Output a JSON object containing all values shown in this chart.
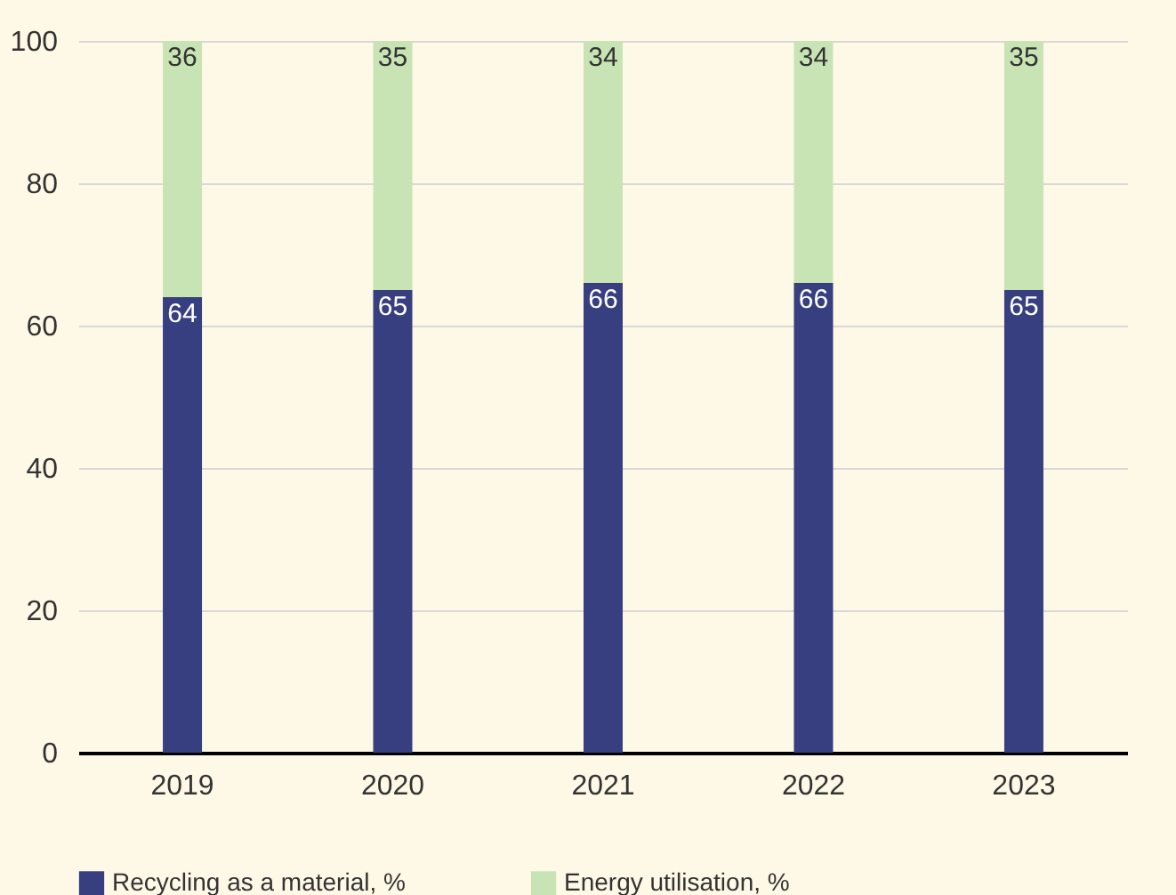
{
  "chart_data": {
    "type": "bar",
    "stacked": true,
    "categories": [
      "2019",
      "2020",
      "2021",
      "2022",
      "2023"
    ],
    "series": [
      {
        "name": "Recycling as a material, %",
        "color": "#373f80",
        "values": [
          64,
          65,
          66,
          66,
          65
        ]
      },
      {
        "name": "Energy utilisation, %",
        "color": "#c9e4b4",
        "values": [
          36,
          35,
          34,
          34,
          35
        ]
      }
    ],
    "ylim": [
      0,
      100
    ],
    "yticks": [
      0,
      20,
      40,
      60,
      80,
      100
    ],
    "grid": "y",
    "legend": "bottom",
    "data_labels": true
  }
}
